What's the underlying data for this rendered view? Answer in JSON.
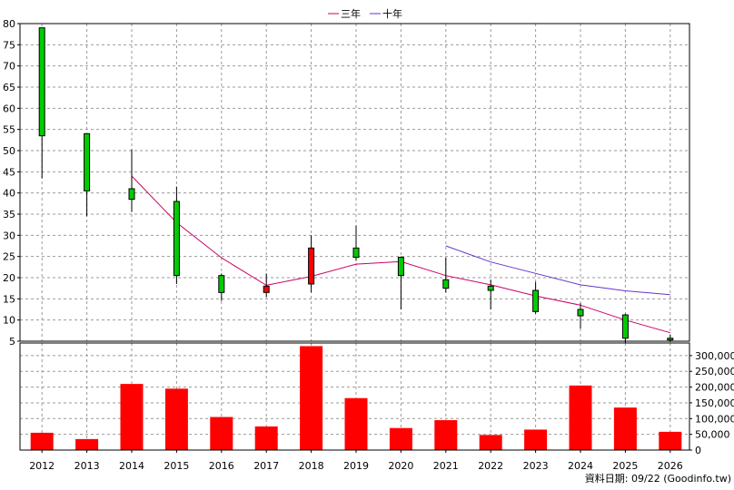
{
  "legend": {
    "items": [
      {
        "label": "三年",
        "color": "#cc0066"
      },
      {
        "label": "十年",
        "color": "#6633cc"
      }
    ]
  },
  "footer": {
    "source": "資料日期: 09/22 (Goodinfo.tw)"
  },
  "colors": {
    "up": "#ff0000",
    "down": "#00cc00",
    "volume": "#ff0000",
    "grid": "#999999"
  },
  "chart_data": [
    {
      "type": "candlestick",
      "title": "",
      "categories": [
        "2012",
        "2013",
        "2014",
        "2015",
        "2016",
        "2017",
        "2018",
        "2019",
        "2020",
        "2021",
        "2022",
        "2023",
        "2024",
        "2025",
        "2026"
      ],
      "ylim": [
        5,
        80
      ],
      "yticks": [
        5,
        10,
        15,
        20,
        25,
        30,
        35,
        40,
        45,
        50,
        55,
        60,
        65,
        70,
        75,
        80
      ],
      "grid": true,
      "legend_position": "top-center",
      "ohlc": [
        {
          "open": 79.0,
          "high": 79.0,
          "low": 43.5,
          "close": 53.5
        },
        {
          "open": 54.0,
          "high": 54.0,
          "low": 34.5,
          "close": 40.5
        },
        {
          "open": 41.0,
          "high": 50.3,
          "low": 35.5,
          "close": 38.5
        },
        {
          "open": 38.0,
          "high": 41.5,
          "low": 18.5,
          "close": 20.5
        },
        {
          "open": 20.5,
          "high": 21.0,
          "low": 14.5,
          "close": 16.5
        },
        {
          "open": 16.5,
          "high": 21.0,
          "low": 15.5,
          "close": 18.0
        },
        {
          "open": 18.5,
          "high": 30.0,
          "low": 16.5,
          "close": 27.0
        },
        {
          "open": 27.0,
          "high": 32.3,
          "low": 24.0,
          "close": 24.8
        },
        {
          "open": 24.8,
          "high": 25.0,
          "low": 12.5,
          "close": 20.5
        },
        {
          "open": 19.5,
          "high": 24.8,
          "low": 16.5,
          "close": 17.5
        },
        {
          "open": 18.0,
          "high": 19.5,
          "low": 12.5,
          "close": 17.0
        },
        {
          "open": 17.0,
          "high": 19.0,
          "low": 11.5,
          "close": 12.0
        },
        {
          "open": 12.5,
          "high": 14.0,
          "low": 8.0,
          "close": 11.0
        },
        {
          "open": 11.2,
          "high": 11.5,
          "low": 4.5,
          "close": 5.7
        },
        {
          "open": 5.7,
          "high": 6.5,
          "low": 4.8,
          "close": 5.3
        }
      ],
      "series": [
        {
          "name": "三年",
          "color": "#cc0066",
          "values": [
            null,
            null,
            44.0,
            33.0,
            24.7,
            18.2,
            20.3,
            23.2,
            23.8,
            20.5,
            18.3,
            15.7,
            13.5,
            10.0,
            7.0
          ]
        },
        {
          "name": "十年",
          "color": "#6633cc",
          "values": [
            null,
            null,
            null,
            null,
            null,
            null,
            null,
            null,
            null,
            27.5,
            23.7,
            21.0,
            18.3,
            16.9,
            16.0
          ]
        }
      ]
    },
    {
      "type": "bar",
      "title": "",
      "categories": [
        "2012",
        "2013",
        "2014",
        "2015",
        "2016",
        "2017",
        "2018",
        "2019",
        "2020",
        "2021",
        "2022",
        "2023",
        "2024",
        "2025",
        "2026"
      ],
      "values": [
        55000,
        35000,
        210000,
        195000,
        105000,
        75000,
        330000,
        165000,
        70000,
        95000,
        48000,
        65000,
        205000,
        135000,
        58000
      ],
      "ylim": [
        0,
        340000
      ],
      "yticks": [
        0,
        50000,
        100000,
        150000,
        200000,
        250000,
        300000
      ],
      "ytick_labels": [
        "0",
        "50,000",
        "100,000",
        "150,000",
        "200,000",
        "250,000",
        "300,000"
      ],
      "color": "#ff0000"
    }
  ]
}
